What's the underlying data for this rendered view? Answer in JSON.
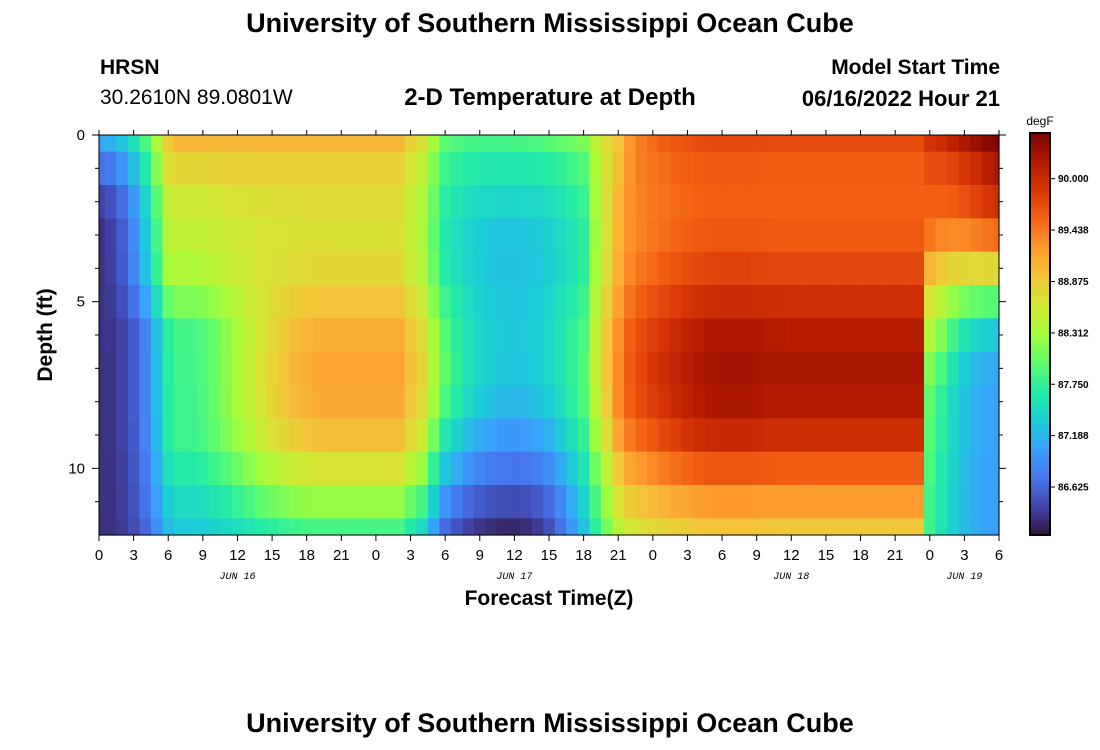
{
  "header": {
    "title": "University of Southern Mississippi Ocean Cube",
    "station": "HRSN",
    "coordinates": "30.2610N  89.0801W",
    "subtitle": "2-D Temperature at Depth",
    "model_start_label": "Model Start Time",
    "model_start_time": "06/16/2022 Hour 21"
  },
  "footer": {
    "title": "University of Southern Mississippi Ocean Cube"
  },
  "colors": {
    "background": "#ffffff",
    "colormap": [
      "#30123b",
      "#4145ab",
      "#4675ed",
      "#39a2fc",
      "#1bcfd4",
      "#24eca6",
      "#61fc6c",
      "#a4fc3b",
      "#d1e834",
      "#f3c63a",
      "#fe9b2d",
      "#f36315",
      "#d93806",
      "#b11901",
      "#7a0402"
    ]
  },
  "chart_data": {
    "type": "heatmap",
    "xlabel": "Forecast Time(Z)",
    "ylabel": "Depth (ft)",
    "x_unit": "hours since 2022-06-16 00Z",
    "xlim": [
      0,
      78
    ],
    "ylim": [
      0,
      12
    ],
    "y_reversed": true,
    "x_ticks": [
      0,
      3,
      6,
      9,
      12,
      15,
      18,
      21,
      24,
      27,
      30,
      33,
      36,
      39,
      42,
      45,
      48,
      51,
      54,
      57,
      60,
      63,
      66,
      69,
      72,
      75,
      78
    ],
    "x_tick_labels": [
      "0",
      "3",
      "6",
      "9",
      "12",
      "15",
      "18",
      "21",
      "0",
      "3",
      "6",
      "9",
      "12",
      "15",
      "18",
      "21",
      "0",
      "3",
      "6",
      "9",
      "12",
      "15",
      "18",
      "21",
      "0",
      "3",
      "6"
    ],
    "y_ticks": [
      0,
      5,
      10
    ],
    "y_tick_labels": [
      "0",
      "5",
      "10"
    ],
    "y_minor_ticks": [
      1,
      2,
      3,
      4,
      6,
      7,
      8,
      9,
      11
    ],
    "date_labels": [
      {
        "text": "JUN 16",
        "x": 12
      },
      {
        "text": "JUN 17",
        "x": 36
      },
      {
        "text": "JUN 18",
        "x": 60
      },
      {
        "text": "JUN 19",
        "x": 75
      }
    ],
    "colorbar": {
      "label": "degF",
      "min": 86.1,
      "max": 90.5,
      "ticks": [
        90.0,
        89.438,
        88.875,
        88.312,
        87.75,
        87.188,
        86.625
      ],
      "tick_labels": [
        "90.000",
        "89.438",
        "88.875",
        "88.312",
        "87.750",
        "87.188",
        "86.625"
      ]
    },
    "time_hours": [
      0,
      1,
      2,
      3,
      4,
      5,
      6,
      7,
      8,
      9,
      10,
      11,
      12,
      13,
      14,
      15,
      16,
      17,
      18,
      19,
      20,
      21,
      22,
      23,
      24,
      25,
      26,
      27,
      28,
      29,
      30,
      31,
      32,
      33,
      34,
      35,
      36,
      37,
      38,
      39,
      40,
      41,
      42,
      43,
      44,
      45,
      46,
      47,
      48,
      49,
      50,
      51,
      52,
      53,
      54,
      55,
      56,
      57,
      58,
      59,
      60,
      61,
      62,
      63,
      64,
      65,
      66,
      67,
      68,
      69,
      70,
      71,
      72,
      73,
      74,
      75,
      76,
      77,
      78
    ],
    "depth_layers_ft": [
      0,
      1,
      2,
      3,
      4,
      5,
      6,
      7,
      8,
      9,
      10,
      11,
      12
    ],
    "values": [
      [
        87.09,
        87.14,
        87.29,
        87.53,
        87.88,
        88.33,
        88.86,
        89.03,
        89.03,
        89.03,
        89.03,
        89.03,
        89.03,
        89.03,
        89.03,
        89.03,
        89.03,
        89.03,
        89.03,
        89.03,
        89.03,
        89.03,
        89.03,
        89.03,
        89.03,
        89.03,
        89.03,
        88.84,
        88.69,
        88.29,
        87.95,
        87.89,
        87.86,
        87.84,
        87.83,
        87.83,
        87.84,
        87.86,
        87.89,
        87.93,
        87.98,
        88.04,
        88.1,
        88.47,
        88.73,
        88.94,
        89.26,
        89.41,
        89.52,
        89.6,
        89.65,
        89.69,
        89.72,
        89.73,
        89.74,
        89.74,
        89.74,
        89.73,
        89.72,
        89.72,
        89.71,
        89.71,
        89.71,
        89.71,
        89.71,
        89.71,
        89.71,
        89.71,
        89.71,
        89.71,
        89.71,
        89.71,
        89.91,
        89.99,
        90.09,
        90.2,
        90.31,
        90.41,
        90.48
      ],
      [
        86.71,
        86.78,
        86.96,
        87.24,
        87.65,
        88.16,
        88.72,
        88.78,
        88.78,
        88.79,
        88.81,
        88.82,
        88.83,
        88.84,
        88.84,
        88.84,
        88.84,
        88.84,
        88.84,
        88.84,
        88.84,
        88.84,
        88.84,
        88.84,
        88.84,
        88.84,
        88.84,
        88.64,
        88.51,
        88.13,
        87.8,
        87.72,
        87.67,
        87.64,
        87.62,
        87.61,
        87.61,
        87.62,
        87.64,
        87.68,
        87.74,
        87.82,
        87.9,
        88.37,
        88.7,
        88.97,
        89.27,
        89.4,
        89.47,
        89.52,
        89.56,
        89.59,
        89.61,
        89.62,
        89.63,
        89.63,
        89.63,
        89.62,
        89.61,
        89.61,
        89.61,
        89.61,
        89.61,
        89.61,
        89.61,
        89.61,
        89.61,
        89.61,
        89.61,
        89.61,
        89.61,
        89.61,
        89.7,
        89.72,
        89.78,
        89.88,
        90.0,
        90.12,
        90.2
      ],
      [
        86.41,
        86.49,
        86.68,
        86.98,
        87.41,
        87.94,
        88.52,
        88.58,
        88.58,
        88.6,
        88.62,
        88.64,
        88.67,
        88.68,
        88.7,
        88.71,
        88.72,
        88.72,
        88.73,
        88.73,
        88.73,
        88.73,
        88.73,
        88.73,
        88.73,
        88.73,
        88.73,
        88.52,
        88.39,
        88.02,
        87.69,
        87.59,
        87.52,
        87.47,
        87.44,
        87.43,
        87.43,
        87.44,
        87.46,
        87.51,
        87.58,
        87.68,
        87.78,
        88.32,
        88.7,
        89.03,
        89.29,
        89.38,
        89.44,
        89.48,
        89.52,
        89.54,
        89.57,
        89.58,
        89.59,
        89.59,
        89.59,
        89.59,
        89.58,
        89.58,
        89.58,
        89.58,
        89.58,
        89.58,
        89.58,
        89.58,
        89.58,
        89.58,
        89.58,
        89.58,
        89.58,
        89.58,
        89.59,
        89.58,
        89.61,
        89.69,
        89.79,
        89.89,
        89.96
      ],
      [
        86.31,
        86.39,
        86.58,
        86.88,
        87.31,
        87.84,
        88.42,
        88.48,
        88.48,
        88.5,
        88.53,
        88.56,
        88.59,
        88.62,
        88.64,
        88.66,
        88.68,
        88.69,
        88.7,
        88.7,
        88.7,
        88.7,
        88.7,
        88.7,
        88.7,
        88.7,
        88.7,
        88.5,
        88.36,
        87.97,
        87.63,
        87.51,
        87.42,
        87.35,
        87.31,
        87.29,
        87.29,
        87.3,
        87.33,
        87.38,
        87.47,
        87.58,
        87.7,
        88.27,
        88.68,
        89.04,
        89.28,
        89.38,
        89.45,
        89.5,
        89.55,
        89.59,
        89.62,
        89.64,
        89.65,
        89.65,
        89.65,
        89.64,
        89.63,
        89.62,
        89.62,
        89.62,
        89.62,
        89.62,
        89.62,
        89.62,
        89.62,
        89.62,
        89.62,
        89.62,
        89.62,
        89.62,
        89.45,
        89.36,
        89.33,
        89.35,
        89.4,
        89.46,
        89.51
      ],
      [
        86.31,
        86.38,
        86.56,
        86.84,
        87.25,
        87.76,
        88.31,
        88.38,
        88.38,
        88.41,
        88.45,
        88.5,
        88.55,
        88.6,
        88.64,
        88.68,
        88.71,
        88.73,
        88.75,
        88.76,
        88.77,
        88.77,
        88.77,
        88.77,
        88.77,
        88.77,
        88.77,
        88.56,
        88.42,
        88.02,
        87.66,
        87.53,
        87.42,
        87.35,
        87.3,
        87.27,
        87.27,
        87.28,
        87.31,
        87.37,
        87.46,
        87.59,
        87.72,
        88.3,
        88.72,
        89.09,
        89.35,
        89.45,
        89.53,
        89.6,
        89.66,
        89.71,
        89.75,
        89.78,
        89.79,
        89.79,
        89.79,
        89.78,
        89.77,
        89.76,
        89.76,
        89.76,
        89.76,
        89.76,
        89.76,
        89.76,
        89.76,
        89.76,
        89.76,
        89.76,
        89.76,
        89.76,
        89.05,
        88.9,
        88.8,
        88.76,
        88.75,
        88.76,
        88.77
      ],
      [
        86.31,
        86.35,
        86.48,
        86.7,
        87.05,
        87.5,
        88.0,
        88.11,
        88.11,
        88.16,
        88.24,
        88.34,
        88.44,
        88.55,
        88.64,
        88.73,
        88.8,
        88.86,
        88.9,
        88.93,
        88.94,
        88.94,
        88.94,
        88.94,
        88.94,
        88.94,
        88.94,
        88.73,
        88.58,
        88.16,
        87.8,
        87.63,
        87.5,
        87.4,
        87.34,
        87.3,
        87.29,
        87.31,
        87.35,
        87.42,
        87.53,
        87.66,
        87.8,
        88.39,
        88.81,
        89.2,
        89.46,
        89.59,
        89.69,
        89.77,
        89.84,
        89.9,
        89.95,
        89.99,
        90.0,
        90.0,
        90.0,
        89.99,
        89.97,
        89.97,
        89.96,
        89.96,
        89.96,
        89.96,
        89.96,
        89.96,
        89.96,
        89.96,
        89.96,
        89.96,
        89.96,
        89.96,
        88.66,
        88.43,
        88.22,
        88.08,
        87.99,
        87.94,
        87.92
      ],
      [
        86.31,
        86.33,
        86.41,
        86.57,
        86.85,
        87.25,
        87.7,
        87.84,
        87.84,
        87.91,
        88.02,
        88.17,
        88.33,
        88.49,
        88.64,
        88.77,
        88.89,
        88.98,
        89.04,
        89.08,
        89.1,
        89.1,
        89.1,
        89.1,
        89.1,
        89.1,
        89.1,
        88.89,
        88.74,
        88.3,
        87.92,
        87.72,
        87.56,
        87.44,
        87.36,
        87.32,
        87.3,
        87.32,
        87.37,
        87.45,
        87.57,
        87.73,
        87.88,
        88.47,
        88.9,
        89.3,
        89.58,
        89.71,
        89.82,
        89.92,
        90.01,
        90.08,
        90.14,
        90.19,
        90.2,
        90.2,
        90.2,
        90.19,
        90.16,
        90.16,
        90.15,
        90.15,
        90.15,
        90.15,
        90.15,
        90.15,
        90.15,
        90.15,
        90.15,
        90.15,
        90.15,
        90.15,
        88.39,
        88.12,
        87.82,
        87.59,
        87.44,
        87.35,
        87.31
      ],
      [
        86.3,
        86.32,
        86.4,
        86.57,
        86.84,
        87.23,
        87.68,
        87.82,
        87.82,
        87.9,
        88.02,
        88.17,
        88.34,
        88.51,
        88.67,
        88.82,
        88.94,
        89.04,
        89.11,
        89.16,
        89.17,
        89.17,
        89.17,
        89.17,
        89.17,
        89.17,
        89.17,
        88.96,
        88.8,
        88.36,
        87.97,
        87.75,
        87.57,
        87.44,
        87.35,
        87.3,
        87.29,
        87.31,
        87.36,
        87.44,
        87.57,
        87.74,
        87.91,
        88.49,
        88.93,
        89.34,
        89.62,
        89.76,
        89.87,
        89.97,
        90.06,
        90.14,
        90.2,
        90.25,
        90.27,
        90.27,
        90.27,
        90.25,
        90.23,
        90.22,
        90.22,
        90.22,
        90.22,
        90.22,
        90.22,
        90.22,
        90.22,
        90.22,
        90.22,
        90.22,
        90.22,
        90.22,
        88.12,
        87.87,
        87.58,
        87.36,
        87.21,
        87.13,
        87.09
      ],
      [
        86.3,
        86.32,
        86.4,
        86.57,
        86.84,
        87.23,
        87.67,
        87.81,
        87.81,
        87.89,
        88.01,
        88.16,
        88.33,
        88.49,
        88.65,
        88.79,
        88.91,
        89.01,
        89.07,
        89.12,
        89.13,
        89.13,
        89.13,
        89.13,
        89.13,
        89.13,
        89.13,
        88.91,
        88.75,
        88.29,
        87.88,
        87.66,
        87.48,
        87.35,
        87.26,
        87.21,
        87.19,
        87.21,
        87.27,
        87.37,
        87.51,
        87.7,
        87.89,
        88.44,
        88.88,
        89.32,
        89.59,
        89.72,
        89.83,
        89.93,
        90.02,
        90.1,
        90.16,
        90.2,
        90.22,
        90.22,
        90.22,
        90.2,
        90.18,
        90.17,
        90.17,
        90.17,
        90.17,
        90.17,
        90.17,
        90.17,
        90.17,
        90.17,
        90.17,
        90.17,
        90.17,
        90.17,
        87.97,
        87.73,
        87.47,
        87.27,
        87.14,
        87.07,
        87.03
      ],
      [
        86.3,
        86.32,
        86.4,
        86.56,
        86.83,
        87.22,
        87.66,
        87.8,
        87.8,
        87.87,
        87.97,
        88.11,
        88.26,
        88.41,
        88.55,
        88.68,
        88.78,
        88.87,
        88.93,
        88.97,
        88.99,
        88.99,
        88.99,
        88.99,
        88.99,
        88.99,
        88.99,
        88.75,
        88.57,
        88.07,
        87.62,
        87.41,
        87.24,
        87.12,
        87.04,
        86.99,
        86.98,
        87.0,
        87.06,
        87.16,
        87.33,
        87.54,
        87.75,
        88.27,
        88.72,
        89.16,
        89.43,
        89.55,
        89.65,
        89.75,
        89.83,
        89.91,
        89.97,
        90.01,
        90.02,
        90.02,
        90.02,
        90.01,
        89.98,
        89.98,
        89.97,
        89.97,
        89.97,
        89.97,
        89.97,
        89.97,
        89.97,
        89.97,
        89.97,
        89.97,
        89.97,
        89.97,
        87.93,
        87.7,
        87.45,
        87.26,
        87.14,
        87.07,
        87.03
      ],
      [
        86.29,
        86.31,
        86.38,
        86.53,
        86.78,
        87.13,
        87.53,
        87.66,
        87.66,
        87.71,
        87.8,
        87.91,
        88.04,
        88.17,
        88.29,
        88.4,
        88.5,
        88.57,
        88.62,
        88.66,
        88.67,
        88.67,
        88.67,
        88.67,
        88.67,
        88.67,
        88.67,
        88.43,
        88.25,
        87.75,
        87.3,
        87.11,
        86.96,
        86.85,
        86.78,
        86.74,
        86.73,
        86.75,
        86.81,
        86.92,
        87.1,
        87.33,
        87.57,
        88.05,
        88.48,
        88.91,
        89.15,
        89.25,
        89.34,
        89.42,
        89.49,
        89.55,
        89.6,
        89.64,
        89.65,
        89.65,
        89.65,
        89.64,
        89.62,
        89.61,
        89.61,
        89.61,
        89.61,
        89.61,
        89.61,
        89.61,
        89.61,
        89.61,
        89.61,
        89.61,
        89.61,
        89.61,
        87.87,
        87.64,
        87.41,
        87.23,
        87.12,
        87.06,
        87.03
      ],
      [
        86.29,
        86.3,
        86.37,
        86.5,
        86.71,
        87.02,
        87.37,
        87.48,
        87.48,
        87.52,
        87.59,
        87.67,
        87.77,
        87.87,
        87.96,
        88.05,
        88.12,
        88.18,
        88.22,
        88.24,
        88.25,
        88.25,
        88.25,
        88.25,
        88.25,
        88.25,
        88.25,
        88.01,
        87.84,
        87.37,
        86.95,
        86.78,
        86.65,
        86.56,
        86.5,
        86.46,
        86.45,
        86.48,
        86.55,
        86.67,
        86.87,
        87.13,
        87.4,
        87.86,
        88.26,
        88.65,
        88.86,
        88.94,
        89.01,
        89.07,
        89.13,
        89.17,
        89.21,
        89.24,
        89.25,
        89.25,
        89.25,
        89.24,
        89.22,
        89.22,
        89.22,
        89.22,
        89.22,
        89.22,
        89.22,
        89.22,
        89.22,
        89.22,
        89.22,
        89.22,
        89.22,
        89.22,
        87.83,
        87.6,
        87.38,
        87.22,
        87.12,
        87.06,
        87.03
      ],
      [
        86.28,
        86.29,
        86.35,
        86.46,
        86.64,
        86.91,
        87.22,
        87.32,
        87.32,
        87.35,
        87.39,
        87.45,
        87.52,
        87.59,
        87.66,
        87.72,
        87.77,
        87.81,
        87.84,
        87.86,
        87.86,
        87.86,
        87.86,
        87.86,
        87.86,
        87.86,
        87.86,
        87.64,
        87.48,
        87.05,
        86.67,
        86.52,
        86.4,
        86.32,
        86.27,
        86.24,
        86.24,
        86.27,
        86.35,
        86.48,
        86.7,
        86.98,
        87.27,
        87.71,
        88.08,
        88.44,
        88.62,
        88.69,
        88.75,
        88.8,
        88.85,
        88.88,
        88.92,
        88.94,
        88.95,
        88.95,
        88.95,
        88.94,
        88.93,
        88.92,
        88.92,
        88.92,
        88.92,
        88.92,
        88.92,
        88.92,
        88.92,
        88.92,
        88.92,
        88.92,
        88.92,
        88.92,
        87.81,
        87.59,
        87.37,
        87.22,
        87.12,
        87.06,
        87.03
      ]
    ]
  }
}
